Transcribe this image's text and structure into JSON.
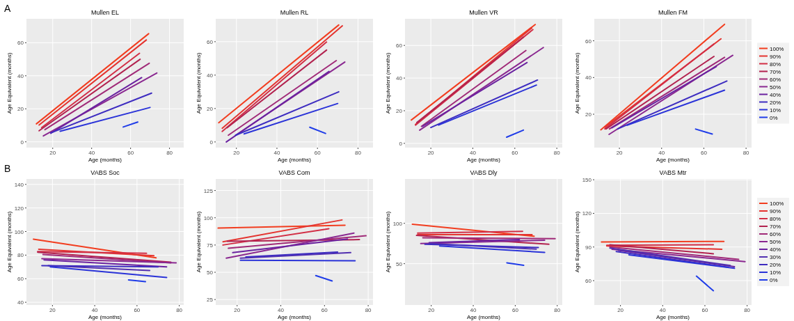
{
  "chart_data": [
    {
      "type": "line",
      "title": "Mullen EL",
      "annotations": [
        "A"
      ],
      "xlabel": "Age (months)",
      "ylabel": "Age Equivalent (months)",
      "xlim": [
        6.5,
        87.3
      ],
      "xticks": [
        20,
        40,
        60,
        80
      ],
      "ylim": [
        -3.5,
        74.5
      ],
      "yticks": [
        0,
        20,
        40,
        60
      ],
      "grid": true,
      "legend": false,
      "series": [
        {
          "color": "#f23d1f",
          "x": [
            11.6,
            69.3
          ],
          "values": [
            10.9,
            65.5
          ]
        },
        {
          "color": "#e4332f",
          "x": [
            13,
            68.1
          ],
          "values": [
            10.2,
            61.7
          ]
        },
        {
          "color": "#d22e45",
          "x": [
            14.3,
            64.6
          ],
          "values": [
            8.6,
            53.6
          ]
        },
        {
          "color": "#b2224f",
          "x": [
            13,
            64.9
          ],
          "values": [
            6.7,
            50
          ]
        },
        {
          "color": "#a02a78",
          "x": [
            16,
            69.6
          ],
          "values": [
            7.4,
            47.6
          ]
        },
        {
          "color": "#8a2890",
          "x": [
            15.2,
            73.5
          ],
          "values": [
            3.6,
            41.7
          ]
        },
        {
          "color": "#6a22a0",
          "x": [
            19,
            65.7
          ],
          "values": [
            5.2,
            38.9
          ]
        },
        {
          "color": "#3d2cc0",
          "x": [
            19,
            70.8
          ],
          "values": [
            5.4,
            29.5
          ]
        },
        {
          "color": "#2a33d8",
          "x": [
            23.8,
            70
          ],
          "values": [
            6.4,
            20.8
          ]
        },
        {
          "color": "#1f3ce8",
          "x": [
            56.2,
            63.7
          ],
          "values": [
            9,
            12
          ]
        }
      ]
    },
    {
      "type": "line",
      "title": "Mullen RL",
      "xlabel": "Age (months)",
      "ylabel": "Age Equivalent (months)",
      "xlim": [
        9.8,
        87.4
      ],
      "xticks": [
        20,
        40,
        60,
        80
      ],
      "ylim": [
        -3.4,
        73.7
      ],
      "yticks": [
        0,
        20,
        40,
        60
      ],
      "grid": true,
      "legend": false,
      "series": [
        {
          "color": "#f23d1f",
          "x": [
            11.3,
            70.5
          ],
          "values": [
            11.5,
            70
          ]
        },
        {
          "color": "#e4332f",
          "x": [
            13,
            72.3
          ],
          "values": [
            8.2,
            69.5
          ]
        },
        {
          "color": "#d22e45",
          "x": [
            13,
            64.5
          ],
          "values": [
            6.3,
            59.8
          ]
        },
        {
          "color": "#b2224f",
          "x": [
            15.4,
            64.5
          ],
          "values": [
            8.5,
            55
          ]
        },
        {
          "color": "#a02a78",
          "x": [
            16,
            69.3
          ],
          "values": [
            4,
            48.7
          ]
        },
        {
          "color": "#8a2890",
          "x": [
            19.6,
            73.5
          ],
          "values": [
            4,
            47.8
          ]
        },
        {
          "color": "#6a22a0",
          "x": [
            15,
            65.7
          ],
          "values": [
            0,
            42.2
          ]
        },
        {
          "color": "#3d2cc0",
          "x": [
            19.6,
            70.5
          ],
          "values": [
            4,
            30
          ]
        },
        {
          "color": "#2a33d8",
          "x": [
            23.8,
            70
          ],
          "values": [
            4.8,
            23
          ]
        },
        {
          "color": "#1f3ce8",
          "x": [
            56.2,
            64
          ],
          "values": [
            8.8,
            5.1
          ]
        }
      ]
    },
    {
      "type": "line",
      "title": "Mullen VR",
      "xlabel": "Age (months)",
      "ylabel": "Age Equivalent (months)",
      "xlim": [
        7.7,
        82.6
      ],
      "xticks": [
        20,
        40,
        60,
        80
      ],
      "ylim": [
        -2.6,
        76.3
      ],
      "yticks": [
        0,
        20,
        40,
        60
      ],
      "grid": true,
      "legend": false,
      "series": [
        {
          "color": "#f23d1f",
          "x": [
            10.7,
            69.7
          ],
          "values": [
            14.3,
            72.8
          ]
        },
        {
          "color": "#e4332f",
          "x": [
            12.7,
            68
          ],
          "values": [
            11.6,
            70.6
          ]
        },
        {
          "color": "#d22e45",
          "x": [
            12.7,
            68.6
          ],
          "values": [
            11.2,
            69.7
          ]
        },
        {
          "color": "#b2224f",
          "x": [
            13.3,
            64.1
          ],
          "values": [
            12.7,
            65.1
          ]
        },
        {
          "color": "#a02a78",
          "x": [
            15.5,
            65.3
          ],
          "values": [
            10.4,
            56.9
          ]
        },
        {
          "color": "#8a2890",
          "x": [
            14.7,
            73.6
          ],
          "values": [
            8.1,
            58.7
          ]
        },
        {
          "color": "#6a22a0",
          "x": [
            16,
            65.8
          ],
          "values": [
            10.4,
            49.5
          ]
        },
        {
          "color": "#3d2cc0",
          "x": [
            20,
            70.8
          ],
          "values": [
            9.7,
            38.8
          ]
        },
        {
          "color": "#2a33d8",
          "x": [
            23.7,
            70.3
          ],
          "values": [
            11.2,
            35.7
          ]
        },
        {
          "color": "#1f3ce8",
          "x": [
            56.1,
            64.1
          ],
          "values": [
            3.8,
            8.1
          ]
        }
      ]
    },
    {
      "type": "line",
      "title": "Mullen FM",
      "xlabel": "Age (months)",
      "ylabel": "Age Equivalent (months)",
      "xlim": [
        8.1,
        82.6
      ],
      "xticks": [
        20,
        40,
        60,
        80
      ],
      "ylim": [
        1.8,
        72
      ],
      "yticks": [
        20,
        40,
        60
      ],
      "grid": true,
      "legend": "right",
      "series": [
        {
          "name": "100%",
          "color": "#f23d1f",
          "x": [
            11.2,
            69.8
          ],
          "values": [
            11.5,
            69
          ]
        },
        {
          "name": "90%",
          "color": "#e4332f",
          "x": [
            13.1,
            68.1
          ],
          "values": [
            12.9,
            61.1
          ]
        },
        {
          "name": "80%",
          "color": "#d22e45",
          "x": [
            13.1,
            64.8
          ],
          "values": [
            12,
            58.3
          ]
        },
        {
          "name": "70%",
          "color": "#b2224f",
          "x": [
            13.7,
            64.8
          ],
          "values": [
            12,
            51.5
          ]
        },
        {
          "name": "60%",
          "color": "#a02a78",
          "x": [
            15.3,
            69.8
          ],
          "values": [
            12,
            51
          ]
        },
        {
          "name": "50%",
          "color": "#8a2890",
          "x": [
            15.1,
            73.7
          ],
          "values": [
            9,
            52.1
          ]
        },
        {
          "name": "40%",
          "color": "#6a22a0",
          "x": [
            16.4,
            65.9
          ],
          "values": [
            12.6,
            46
          ]
        },
        {
          "name": "20%",
          "color": "#3d2cc0",
          "x": [
            19.2,
            70.9
          ],
          "values": [
            12,
            38.1
          ]
        },
        {
          "name": "10%",
          "color": "#2a33d8",
          "x": [
            23.7,
            69.8
          ],
          "values": [
            14,
            33.1
          ]
        },
        {
          "name": "0%",
          "color": "#1f3ce8",
          "x": [
            56.1,
            64
          ],
          "values": [
            11.9,
            9.2
          ]
        }
      ]
    },
    {
      "type": "line",
      "title": "VABS Soc",
      "annotations": [
        "B"
      ],
      "xlabel": "Age (months)",
      "ylabel": "Age Equivalent (months)",
      "xlim": [
        7.7,
        82.1
      ],
      "xticks": [
        20,
        40,
        60,
        80
      ],
      "ylim": [
        37.7,
        144.6
      ],
      "yticks": [
        40,
        60,
        80,
        100,
        120,
        140
      ],
      "grid": true,
      "legend": false,
      "series": [
        {
          "color": "#f23d1f",
          "x": [
            11,
            69
          ],
          "values": [
            93.5,
            77.7
          ]
        },
        {
          "color": "#e4332f",
          "x": [
            13.5,
            68
          ],
          "values": [
            85,
            79.5
          ]
        },
        {
          "color": "#d22e45",
          "x": [
            13,
            64.5
          ],
          "values": [
            83,
            81.5
          ]
        },
        {
          "color": "#b2224f",
          "x": [
            13,
            76
          ],
          "values": [
            82.5,
            74
          ]
        },
        {
          "color": "#a02a78",
          "x": [
            15.5,
            76
          ],
          "values": [
            80.5,
            73.5
          ]
        },
        {
          "color": "#8a2890",
          "x": [
            15,
            78.5
          ],
          "values": [
            77,
            73.5
          ]
        },
        {
          "color": "#6a22a0",
          "x": [
            16,
            74
          ],
          "values": [
            76,
            70
          ]
        },
        {
          "color": "#5230b0",
          "x": [
            18,
            66
          ],
          "values": [
            71,
            67
          ]
        },
        {
          "color": "#3d2cc0",
          "x": [
            15,
            70
          ],
          "values": [
            71,
            70
          ]
        },
        {
          "color": "#2a33d8",
          "x": [
            19,
            74
          ],
          "values": [
            70,
            61
          ]
        },
        {
          "color": "#1f3ce8",
          "x": [
            56,
            64
          ],
          "values": [
            59,
            57.5
          ]
        }
      ]
    },
    {
      "type": "line",
      "title": "VABS Com",
      "xlabel": "Age (months)",
      "ylabel": "Age Equivalent (months)",
      "xlim": [
        10.2,
        82.2
      ],
      "xticks": [
        20,
        40,
        60,
        80
      ],
      "ylim": [
        20,
        135.6
      ],
      "yticks": [
        25,
        50,
        75,
        100,
        125
      ],
      "grid": true,
      "legend": false,
      "series": [
        {
          "color": "#f23d1f",
          "x": [
            11.3,
            69.4
          ],
          "values": [
            90.5,
            93.2
          ]
        },
        {
          "color": "#e4332f",
          "x": [
            13.5,
            68
          ],
          "values": [
            78,
            98
          ]
        },
        {
          "color": "#d22e45",
          "x": [
            13.5,
            62
          ],
          "values": [
            75,
            90
          ]
        },
        {
          "color": "#b2224f",
          "x": [
            15.5,
            76
          ],
          "values": [
            78.5,
            80
          ]
        },
        {
          "color": "#a02a78",
          "x": [
            16,
            79
          ],
          "values": [
            72,
            83.5
          ]
        },
        {
          "color": "#8a2890",
          "x": [
            15,
            73.5
          ],
          "values": [
            63,
            86
          ]
        },
        {
          "color": "#6a22a0",
          "x": [
            18,
            70.5
          ],
          "values": [
            68,
            80.5
          ]
        },
        {
          "color": "#5230b0",
          "x": [
            21.5,
            72
          ],
          "values": [
            63,
            68
          ]
        },
        {
          "color": "#3d2cc0",
          "x": [
            24,
            66
          ],
          "values": [
            64,
            68.5
          ]
        },
        {
          "color": "#2a33d8",
          "x": [
            21.5,
            74
          ],
          "values": [
            61,
            60.5
          ]
        },
        {
          "color": "#1f3ce8",
          "x": [
            56,
            63.5
          ],
          "values": [
            47,
            42
          ]
        }
      ]
    },
    {
      "type": "line",
      "title": "VABS Dly",
      "xlabel": "Age (months)",
      "ylabel": "Age Equivalent (months)",
      "xlim": [
        7.5,
        82.4
      ],
      "xticks": [
        20,
        40,
        60,
        80
      ],
      "ylim": [
        -1.2,
        155
      ],
      "yticks": [
        50,
        100
      ],
      "grid": true,
      "legend": false,
      "series": [
        {
          "color": "#f23d1f",
          "x": [
            11,
            69
          ],
          "values": [
            99,
            84
          ]
        },
        {
          "color": "#e4332f",
          "x": [
            13.5,
            68
          ],
          "values": [
            86,
            86
          ]
        },
        {
          "color": "#d22e45",
          "x": [
            13.5,
            63.5
          ],
          "values": [
            88,
            90
          ]
        },
        {
          "color": "#b2224f",
          "x": [
            13,
            76
          ],
          "values": [
            85,
            74
          ]
        },
        {
          "color": "#a02a78",
          "x": [
            16,
            79
          ],
          "values": [
            82,
            81
          ]
        },
        {
          "color": "#8a2890",
          "x": [
            15,
            74
          ],
          "values": [
            75,
            79
          ]
        },
        {
          "color": "#6a22a0",
          "x": [
            19,
            62
          ],
          "values": [
            76,
            80
          ]
        },
        {
          "color": "#5230b0",
          "x": [
            19,
            70
          ],
          "values": [
            75,
            68
          ]
        },
        {
          "color": "#3d2cc0",
          "x": [
            17,
            71
          ],
          "values": [
            74,
            70
          ]
        },
        {
          "color": "#2a33d8",
          "x": [
            24,
            74
          ],
          "values": [
            72,
            64
          ]
        },
        {
          "color": "#1f3ce8",
          "x": [
            56,
            64
          ],
          "values": [
            51,
            48
          ]
        }
      ]
    },
    {
      "type": "line",
      "title": "VABS Mtr",
      "xlabel": "Age (months)",
      "ylabel": "Age Equivalent (months)",
      "xlim": [
        7.6,
        82.1
      ],
      "xticks": [
        20,
        40,
        60,
        80
      ],
      "ylim": [
        38.3,
        150.7
      ],
      "yticks": [
        60,
        90,
        120,
        150
      ],
      "grid": true,
      "legend": "right",
      "series": [
        {
          "name": "100%",
          "color": "#f23d1f",
          "x": [
            11,
            69
          ],
          "values": [
            94.5,
            95
          ]
        },
        {
          "name": "90%",
          "color": "#e4332f",
          "x": [
            13.5,
            68
          ],
          "values": [
            91,
            88
          ]
        },
        {
          "name": "80%",
          "color": "#d22e45",
          "x": [
            13.5,
            64
          ],
          "values": [
            91.5,
            92
          ]
        },
        {
          "name": "70%",
          "color": "#b2224f",
          "x": [
            15,
            64
          ],
          "values": [
            92,
            84
          ]
        },
        {
          "name": "60%",
          "color": "#a02a78",
          "x": [
            15,
            76
          ],
          "values": [
            90,
            79
          ]
        },
        {
          "name": "50%",
          "color": "#8a2890",
          "x": [
            16,
            79
          ],
          "values": [
            88,
            77
          ]
        },
        {
          "name": "40%",
          "color": "#6a22a0",
          "x": [
            19,
            74
          ],
          "values": [
            87,
            72.5
          ]
        },
        {
          "name": "30%",
          "color": "#5230b0",
          "x": [
            15,
            72
          ],
          "values": [
            89,
            73.5
          ]
        },
        {
          "name": "20%",
          "color": "#3d2cc0",
          "x": [
            18,
            71
          ],
          "values": [
            86,
            72
          ]
        },
        {
          "name": "10%",
          "color": "#2a33d8",
          "x": [
            24,
            74
          ],
          "values": [
            83,
            71
          ]
        },
        {
          "name": "0%",
          "color": "#1f3ce8",
          "x": [
            56,
            64
          ],
          "values": [
            64,
            51
          ]
        }
      ]
    }
  ]
}
